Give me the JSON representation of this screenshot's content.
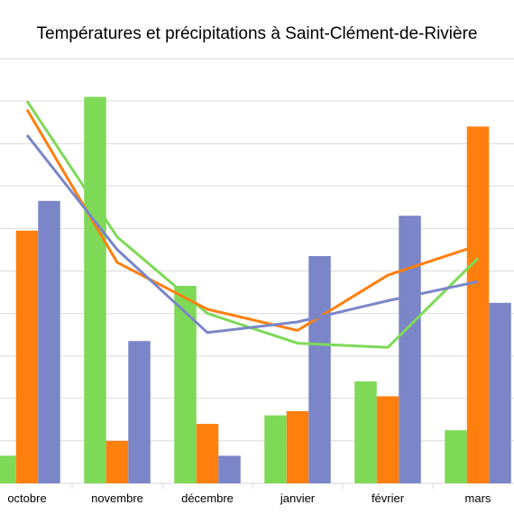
{
  "chart_data": {
    "type": "bar",
    "title": "Températures et précipitations à Saint-Clément-de-Rivière",
    "categories": [
      "octobre",
      "novembre",
      "décembre",
      "janvier",
      "février",
      "mars"
    ],
    "xlabel": "",
    "ylabel": "",
    "ylim": [
      0,
      10
    ],
    "grid": true,
    "legend": "none",
    "bar_series": [
      {
        "color": "#7ed957",
        "values": [
          0.65,
          9.1,
          4.65,
          1.6,
          2.4,
          1.25
        ]
      },
      {
        "color": "#ff7f0e",
        "values": [
          5.95,
          1.0,
          1.4,
          1.7,
          2.05,
          8.4
        ]
      },
      {
        "color": "#7b86c8",
        "values": [
          6.65,
          3.35,
          0.65,
          5.35,
          6.3,
          4.25
        ]
      }
    ],
    "line_series": [
      {
        "color": "#7ed957",
        "values": [
          9.0,
          5.8,
          4.0,
          3.3,
          3.2,
          5.3
        ]
      },
      {
        "color": "#ff7f0e",
        "values": [
          8.8,
          5.2,
          4.1,
          3.6,
          4.9,
          5.6
        ]
      },
      {
        "color": "#7b86c8",
        "values": [
          8.2,
          5.5,
          3.55,
          3.8,
          4.3,
          4.75
        ]
      }
    ]
  }
}
